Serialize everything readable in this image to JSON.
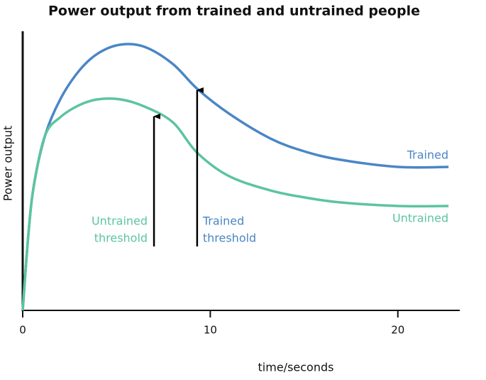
{
  "chart_data": {
    "type": "line",
    "title": "Power output from trained and untrained people",
    "x_label": "time/seconds",
    "y_label": "Power output",
    "xlim": [
      0,
      23.3
    ],
    "ylim": [
      0,
      100
    ],
    "xticks": [
      0,
      10,
      20
    ],
    "x": [
      0,
      0.3,
      0.6,
      1.2,
      2,
      3,
      4,
      5.2,
      6.5,
      8,
      9.3,
      11,
      13.2,
      15,
      16.9,
      20,
      22.7
    ],
    "series": [
      {
        "name": "Trained",
        "color": "#4a86c5",
        "values": [
          0,
          27,
          45,
          62.8,
          75.6,
          85.8,
          92,
          95.2,
          94.4,
          88.3,
          79.4,
          70.5,
          61.6,
          57,
          54,
          51.4,
          51.4
        ]
      },
      {
        "name": "Untrained",
        "color": "#5cc4a0",
        "values": [
          0,
          27,
          45,
          62.8,
          69.2,
          73.5,
          75.6,
          75.6,
          73,
          67.4,
          56.5,
          48.1,
          43,
          40.5,
          38.7,
          37.4,
          37.4
        ]
      }
    ],
    "annotations": [
      {
        "lines": [
          "Untrained",
          "threshold"
        ],
        "x": 7,
        "y": 70,
        "color": "#5cc4a0"
      },
      {
        "lines": [
          "Trained",
          "threshold"
        ],
        "x": 9.3,
        "y": 79.4,
        "color": "#4a86c5"
      }
    ]
  }
}
